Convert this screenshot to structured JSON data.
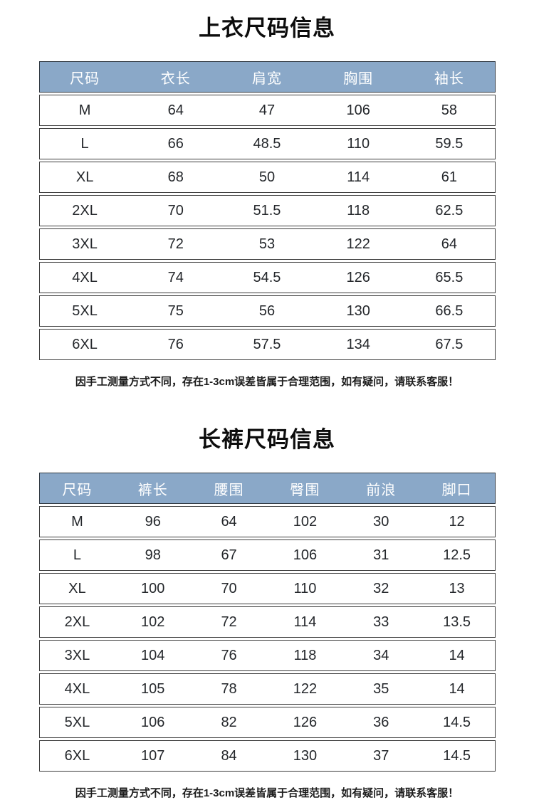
{
  "colors": {
    "header_bg": "#8aa8c8",
    "header_text": "#ffffff",
    "row_border": "#3c3c3c",
    "body_text": "#24272b",
    "page_bg": "#ffffff"
  },
  "tables": [
    {
      "title": "上衣尺码信息",
      "columns": [
        "尺码",
        "衣长",
        "肩宽",
        "胸围",
        "袖长"
      ],
      "rows": [
        [
          "M",
          "64",
          "47",
          "106",
          "58"
        ],
        [
          "L",
          "66",
          "48.5",
          "110",
          "59.5"
        ],
        [
          "XL",
          "68",
          "50",
          "114",
          "61"
        ],
        [
          "2XL",
          "70",
          "51.5",
          "118",
          "62.5"
        ],
        [
          "3XL",
          "72",
          "53",
          "122",
          "64"
        ],
        [
          "4XL",
          "74",
          "54.5",
          "126",
          "65.5"
        ],
        [
          "5XL",
          "75",
          "56",
          "130",
          "66.5"
        ],
        [
          "6XL",
          "76",
          "57.5",
          "134",
          "67.5"
        ]
      ],
      "note": "因手工测量方式不同，存在1-3cm误差皆属于合理范围，如有疑问，请联系客服！"
    },
    {
      "title": "长裤尺码信息",
      "columns": [
        "尺码",
        "裤长",
        "腰围",
        "臀围",
        "前浪",
        "脚口"
      ],
      "rows": [
        [
          "M",
          "96",
          "64",
          "102",
          "30",
          "12"
        ],
        [
          "L",
          "98",
          "67",
          "106",
          "31",
          "12.5"
        ],
        [
          "XL",
          "100",
          "70",
          "110",
          "32",
          "13"
        ],
        [
          "2XL",
          "102",
          "72",
          "114",
          "33",
          "13.5"
        ],
        [
          "3XL",
          "104",
          "76",
          "118",
          "34",
          "14"
        ],
        [
          "4XL",
          "105",
          "78",
          "122",
          "35",
          "14"
        ],
        [
          "5XL",
          "106",
          "82",
          "126",
          "36",
          "14.5"
        ],
        [
          "6XL",
          "107",
          "84",
          "130",
          "37",
          "14.5"
        ]
      ],
      "note": "因手工测量方式不同，存在1-3cm误差皆属于合理范围，如有疑问，请联系客服！"
    }
  ]
}
